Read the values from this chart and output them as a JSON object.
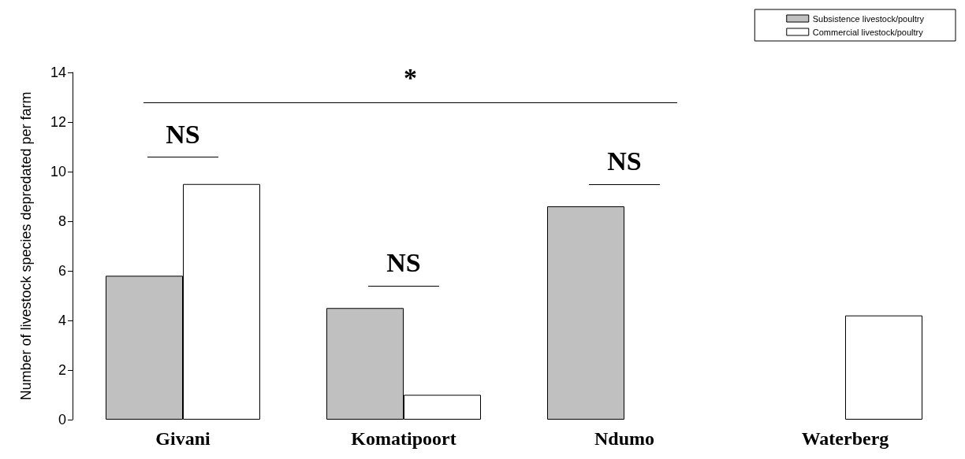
{
  "chart_data": {
    "type": "bar",
    "ylabel": "Number of livestock species depredated per farm",
    "categories": [
      "Givani",
      "Komatipoort",
      "Ndumo",
      "Waterberg"
    ],
    "series": [
      {
        "name": "Subsistence livestock/poultry",
        "color": "#c0c0c0",
        "values": [
          5.8,
          4.5,
          8.6,
          null
        ]
      },
      {
        "name": "Commercial livestock/poultry",
        "color": "#ffffff",
        "values": [
          9.5,
          1.0,
          null,
          4.2
        ]
      }
    ],
    "ylim": [
      0,
      14
    ],
    "yticks": [
      0,
      2,
      4,
      6,
      8,
      10,
      12,
      14
    ],
    "grid": false,
    "legend": "top right",
    "annotations": [
      "*",
      "NS",
      "NS",
      "NS"
    ]
  }
}
